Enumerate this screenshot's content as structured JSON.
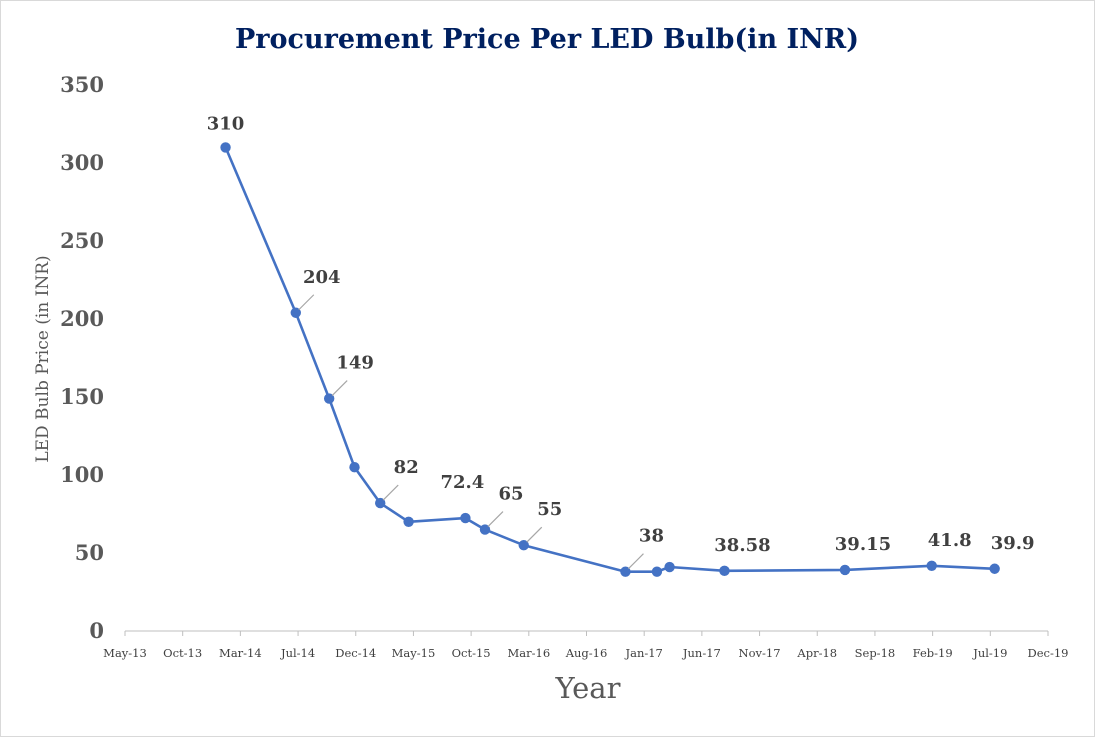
{
  "chart_data": {
    "type": "line",
    "title": "Procurement Price Per LED Bulb(in INR)",
    "xlabel": "Year",
    "ylabel": "LED Bulb Price (in INR)",
    "ylim": [
      0,
      350
    ],
    "yticks": [
      0,
      50,
      100,
      150,
      200,
      250,
      300,
      350
    ],
    "xlim": [
      "2013-05-01",
      "2019-12-01"
    ],
    "xtick_labels": [
      "May-13",
      "Oct-13",
      "Mar-14",
      "Jul-14",
      "Dec-14",
      "May-15",
      "Oct-15",
      "Mar-16",
      "Aug-16",
      "Jan-17",
      "Jun-17",
      "Nov-17",
      "Apr-18",
      "Sep-18",
      "Feb-19",
      "Jul-19",
      "Dec-19"
    ],
    "grid": false,
    "legend": "none",
    "line_color": "#4472C4",
    "series": [
      {
        "points": [
          {
            "x": "2014-01-18",
            "y": 310,
            "label": "310"
          },
          {
            "x": "2014-07-20",
            "y": 204,
            "label": "204"
          },
          {
            "x": "2014-10-15",
            "y": 149,
            "label": "149"
          },
          {
            "x": "2014-12-20",
            "y": 105,
            "label": ""
          },
          {
            "x": "2015-02-25",
            "y": 82,
            "label": "82"
          },
          {
            "x": "2015-05-10",
            "y": 70,
            "label": ""
          },
          {
            "x": "2015-10-05",
            "y": 72.4,
            "label": "72.4"
          },
          {
            "x": "2015-11-25",
            "y": 65,
            "label": "65"
          },
          {
            "x": "2016-03-05",
            "y": 55,
            "label": "55"
          },
          {
            "x": "2016-11-25",
            "y": 38,
            "label": "38"
          },
          {
            "x": "2017-02-15",
            "y": 38,
            "label": ""
          },
          {
            "x": "2017-03-20",
            "y": 41,
            "label": ""
          },
          {
            "x": "2017-08-10",
            "y": 38.58,
            "label": "38.58"
          },
          {
            "x": "2018-06-20",
            "y": 39.15,
            "label": "39.15"
          },
          {
            "x": "2019-02-01",
            "y": 41.8,
            "label": "41.8"
          },
          {
            "x": "2019-07-15",
            "y": 39.9,
            "label": "39.9"
          }
        ]
      }
    ]
  }
}
